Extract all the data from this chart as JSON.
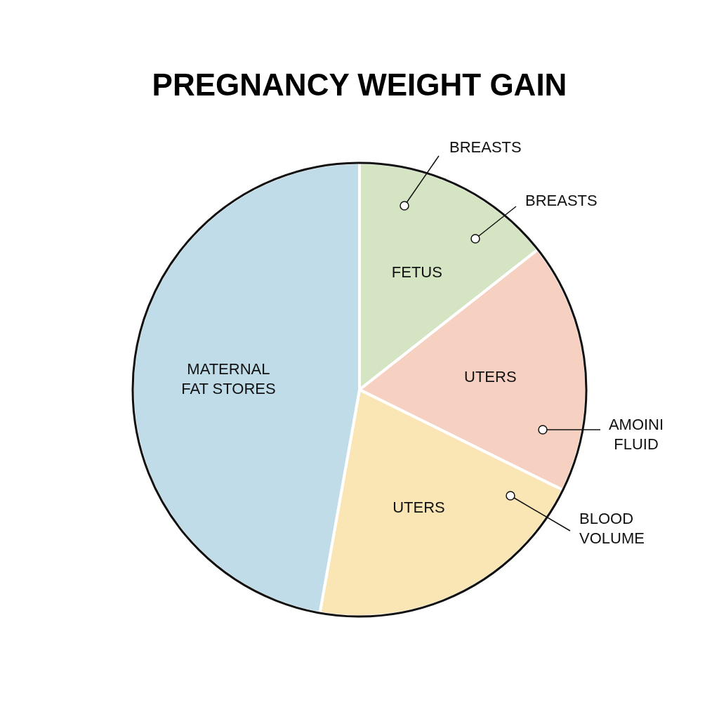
{
  "chart_data": {
    "type": "pie",
    "title": "PREGNANCY WEIGHT GAIN",
    "categories": [
      "FETUS",
      "UTERS",
      "UTERS",
      "MATERNAL FAT STORES"
    ],
    "values": [
      14.4,
      17.9,
      20.5,
      47.2
    ],
    "colors": [
      "#d5e5c3",
      "#f6d0c0",
      "#fae5b5",
      "#bfdce8"
    ],
    "annotations": [
      "BREASTS",
      "BREASTS",
      "AMOINI FLUID",
      "BLOOD VOLUME"
    ]
  }
}
